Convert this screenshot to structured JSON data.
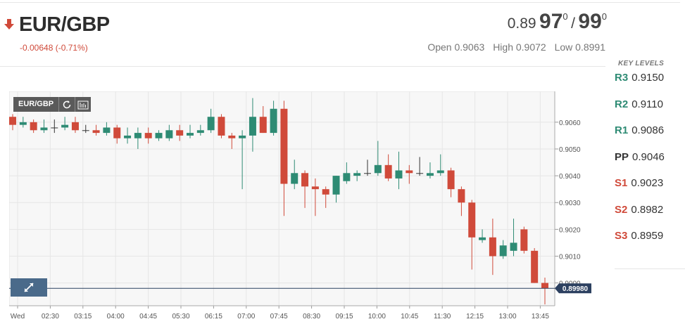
{
  "instrument": {
    "pair": "EUR/GBP",
    "change": "-0.00648 (-0.71%)",
    "direction": "down",
    "bid_prefix": "0.89",
    "bid_big": "97",
    "bid_sup": "0",
    "separator": "/",
    "ask_big": "99",
    "ask_sup": "0",
    "open_label": "Open",
    "open": "0.9063",
    "high_label": "High",
    "high": "0.9072",
    "low_label": "Low",
    "low": "0.8991"
  },
  "key_levels": {
    "title": "KEY LEVELS",
    "items": [
      {
        "name": "R3",
        "value": "0.9150",
        "color": "#2e8b74"
      },
      {
        "name": "R2",
        "value": "0.9110",
        "color": "#2e8b74"
      },
      {
        "name": "R1",
        "value": "0.9086",
        "color": "#2e8b74"
      },
      {
        "name": "PP",
        "value": "0.9046",
        "color": "#333333"
      },
      {
        "name": "S1",
        "value": "0.9023",
        "color": "#d04a3a"
      },
      {
        "name": "S2",
        "value": "0.8982",
        "color": "#d04a3a"
      },
      {
        "name": "S3",
        "value": "0.8959",
        "color": "#d04a3a"
      }
    ]
  },
  "toolbar": {
    "symbol": "EUR/GBP",
    "refresh_icon": "refresh-icon",
    "candles_icon": "candlestick-icon",
    "expand_icon": "expand-icon"
  },
  "chart_data": {
    "type": "candlestick",
    "y_ticks": [
      "0.9060",
      "0.9050",
      "0.9040",
      "0.9030",
      "0.9020",
      "0.9010",
      "0.9000"
    ],
    "ylim": [
      0.89915,
      0.90715
    ],
    "x_labels": [
      "Wed",
      "02:30",
      "03:15",
      "04:00",
      "04:45",
      "05:30",
      "06:15",
      "07:00",
      "07:45",
      "08:30",
      "09:15",
      "10:00",
      "10:45",
      "11:30",
      "12:15",
      "13:00",
      "13:45"
    ],
    "current_price": "0.89980",
    "current_value": 0.8998,
    "colors": {
      "up": "#2e8b74",
      "down": "#d04a3a",
      "grid": "#e6e6e6",
      "current": "#2c4060"
    },
    "candles": [
      {
        "o": 0.9062,
        "h": 0.9063,
        "l": 0.9057,
        "c": 0.9059
      },
      {
        "o": 0.9059,
        "h": 0.9062,
        "l": 0.9058,
        "c": 0.906
      },
      {
        "o": 0.906,
        "h": 0.9061,
        "l": 0.9056,
        "c": 0.9057
      },
      {
        "o": 0.9057,
        "h": 0.9061,
        "l": 0.9056,
        "c": 0.9058
      },
      {
        "o": 0.9058,
        "h": 0.9061,
        "l": 0.9056,
        "c": 0.9058
      },
      {
        "o": 0.9058,
        "h": 0.9062,
        "l": 0.9057,
        "c": 0.9059
      },
      {
        "o": 0.906,
        "h": 0.9062,
        "l": 0.9056,
        "c": 0.9057
      },
      {
        "o": 0.9057,
        "h": 0.9059,
        "l": 0.9056,
        "c": 0.9057
      },
      {
        "o": 0.9057,
        "h": 0.9059,
        "l": 0.9055,
        "c": 0.9056
      },
      {
        "o": 0.9056,
        "h": 0.906,
        "l": 0.9055,
        "c": 0.9058
      },
      {
        "o": 0.9058,
        "h": 0.9059,
        "l": 0.9052,
        "c": 0.9054
      },
      {
        "o": 0.9054,
        "h": 0.9058,
        "l": 0.9052,
        "c": 0.9055
      },
      {
        "o": 0.9054,
        "h": 0.9058,
        "l": 0.905,
        "c": 0.9056
      },
      {
        "o": 0.9056,
        "h": 0.9058,
        "l": 0.9052,
        "c": 0.9054
      },
      {
        "o": 0.9054,
        "h": 0.9057,
        "l": 0.9053,
        "c": 0.9056
      },
      {
        "o": 0.9054,
        "h": 0.9059,
        "l": 0.9053,
        "c": 0.9057
      },
      {
        "o": 0.9057,
        "h": 0.9059,
        "l": 0.9053,
        "c": 0.9055
      },
      {
        "o": 0.9055,
        "h": 0.9059,
        "l": 0.9054,
        "c": 0.9056
      },
      {
        "o": 0.9056,
        "h": 0.9059,
        "l": 0.9055,
        "c": 0.9057
      },
      {
        "o": 0.9057,
        "h": 0.9065,
        "l": 0.9056,
        "c": 0.9062
      },
      {
        "o": 0.9062,
        "h": 0.9063,
        "l": 0.9054,
        "c": 0.9055
      },
      {
        "o": 0.9055,
        "h": 0.9056,
        "l": 0.905,
        "c": 0.9054
      },
      {
        "o": 0.9054,
        "h": 0.9057,
        "l": 0.9035,
        "c": 0.9055
      },
      {
        "o": 0.9055,
        "h": 0.9069,
        "l": 0.9049,
        "c": 0.9062
      },
      {
        "o": 0.9062,
        "h": 0.9066,
        "l": 0.9056,
        "c": 0.9056
      },
      {
        "o": 0.9056,
        "h": 0.9068,
        "l": 0.9055,
        "c": 0.9065
      },
      {
        "o": 0.9065,
        "h": 0.9068,
        "l": 0.9025,
        "c": 0.9037
      },
      {
        "o": 0.9037,
        "h": 0.9046,
        "l": 0.9035,
        "c": 0.9041
      },
      {
        "o": 0.9041,
        "h": 0.9042,
        "l": 0.9028,
        "c": 0.9036
      },
      {
        "o": 0.9036,
        "h": 0.9039,
        "l": 0.9025,
        "c": 0.9035
      },
      {
        "o": 0.9035,
        "h": 0.9036,
        "l": 0.9028,
        "c": 0.9033
      },
      {
        "o": 0.9033,
        "h": 0.904,
        "l": 0.903,
        "c": 0.904
      },
      {
        "o": 0.9038,
        "h": 0.9045,
        "l": 0.9037,
        "c": 0.9041
      },
      {
        "o": 0.904,
        "h": 0.9042,
        "l": 0.9038,
        "c": 0.9041
      },
      {
        "o": 0.9041,
        "h": 0.9046,
        "l": 0.904,
        "c": 0.9041
      },
      {
        "o": 0.9041,
        "h": 0.9053,
        "l": 0.904,
        "c": 0.9044
      },
      {
        "o": 0.9044,
        "h": 0.9048,
        "l": 0.9038,
        "c": 0.9039
      },
      {
        "o": 0.9039,
        "h": 0.9049,
        "l": 0.9035,
        "c": 0.9042
      },
      {
        "o": 0.9042,
        "h": 0.9044,
        "l": 0.9037,
        "c": 0.9041
      },
      {
        "o": 0.9041,
        "h": 0.9047,
        "l": 0.904,
        "c": 0.9041
      },
      {
        "o": 0.904,
        "h": 0.9045,
        "l": 0.9039,
        "c": 0.9041
      },
      {
        "o": 0.9041,
        "h": 0.9048,
        "l": 0.904,
        "c": 0.9042
      },
      {
        "o": 0.9042,
        "h": 0.9043,
        "l": 0.9032,
        "c": 0.9035
      },
      {
        "o": 0.9035,
        "h": 0.9036,
        "l": 0.9025,
        "c": 0.903
      },
      {
        "o": 0.903,
        "h": 0.9031,
        "l": 0.9005,
        "c": 0.9017
      },
      {
        "o": 0.9016,
        "h": 0.902,
        "l": 0.9015,
        "c": 0.9017
      },
      {
        "o": 0.9017,
        "h": 0.9024,
        "l": 0.9003,
        "c": 0.901
      },
      {
        "o": 0.901,
        "h": 0.9016,
        "l": 0.9009,
        "c": 0.9014
      },
      {
        "o": 0.9012,
        "h": 0.9024,
        "l": 0.901,
        "c": 0.9015
      },
      {
        "o": 0.902,
        "h": 0.9021,
        "l": 0.9011,
        "c": 0.9012
      },
      {
        "o": 0.9012,
        "h": 0.9013,
        "l": 0.9,
        "c": 0.9
      },
      {
        "o": 0.9,
        "h": 0.9002,
        "l": 0.8992,
        "c": 0.8998
      }
    ]
  }
}
